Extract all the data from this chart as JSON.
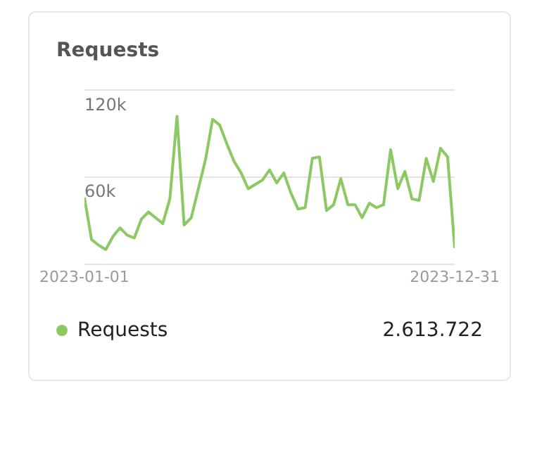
{
  "chart_data": {
    "type": "line",
    "title": "Requests",
    "x": [
      "2023-01-01",
      "2023-01-08",
      "2023-01-15",
      "2023-01-22",
      "2023-01-29",
      "2023-02-05",
      "2023-02-12",
      "2023-02-19",
      "2023-02-26",
      "2023-03-05",
      "2023-03-12",
      "2023-03-19",
      "2023-03-26",
      "2023-04-02",
      "2023-04-09",
      "2023-04-16",
      "2023-04-23",
      "2023-04-30",
      "2023-05-07",
      "2023-05-14",
      "2023-05-21",
      "2023-05-28",
      "2023-06-04",
      "2023-06-11",
      "2023-06-18",
      "2023-06-25",
      "2023-07-02",
      "2023-07-09",
      "2023-07-16",
      "2023-07-23",
      "2023-07-30",
      "2023-08-06",
      "2023-08-13",
      "2023-08-20",
      "2023-08-27",
      "2023-09-03",
      "2023-09-10",
      "2023-09-17",
      "2023-09-24",
      "2023-10-01",
      "2023-10-08",
      "2023-10-15",
      "2023-10-22",
      "2023-10-29",
      "2023-11-05",
      "2023-11-12",
      "2023-11-19",
      "2023-11-26",
      "2023-12-03",
      "2023-12-10",
      "2023-12-17",
      "2023-12-24",
      "2023-12-31"
    ],
    "series": [
      {
        "name": "Requests",
        "color": "#8dc963",
        "values": [
          46000,
          17000,
          13000,
          10000,
          19000,
          25000,
          20000,
          18000,
          31000,
          36000,
          32000,
          28000,
          45000,
          102000,
          27000,
          32000,
          52000,
          72000,
          100000,
          96000,
          83000,
          71000,
          63000,
          52000,
          55000,
          58000,
          65000,
          56000,
          63000,
          49000,
          38000,
          39000,
          73000,
          74000,
          37000,
          41000,
          59000,
          41000,
          41000,
          32000,
          42000,
          39000,
          41000,
          79000,
          52000,
          64000,
          45000,
          44000,
          73000,
          57000,
          80000,
          74000,
          11000
        ]
      }
    ],
    "xlim": [
      "2023-01-01",
      "2023-12-31"
    ],
    "xticks": [
      {
        "value": "2023-01-01",
        "label": "2023-01-01"
      },
      {
        "value": "2023-12-31",
        "label": "2023-12-31"
      }
    ],
    "ylim": [
      0,
      120000
    ],
    "yticks": [
      {
        "value": 0,
        "label": null
      },
      {
        "value": 60000,
        "label": "60k"
      },
      {
        "value": 120000,
        "label": "120k"
      }
    ],
    "grid": "y",
    "legend": "bottom",
    "marker": "none",
    "line_style": "solid",
    "annotations": [
      "2.613.722"
    ]
  }
}
